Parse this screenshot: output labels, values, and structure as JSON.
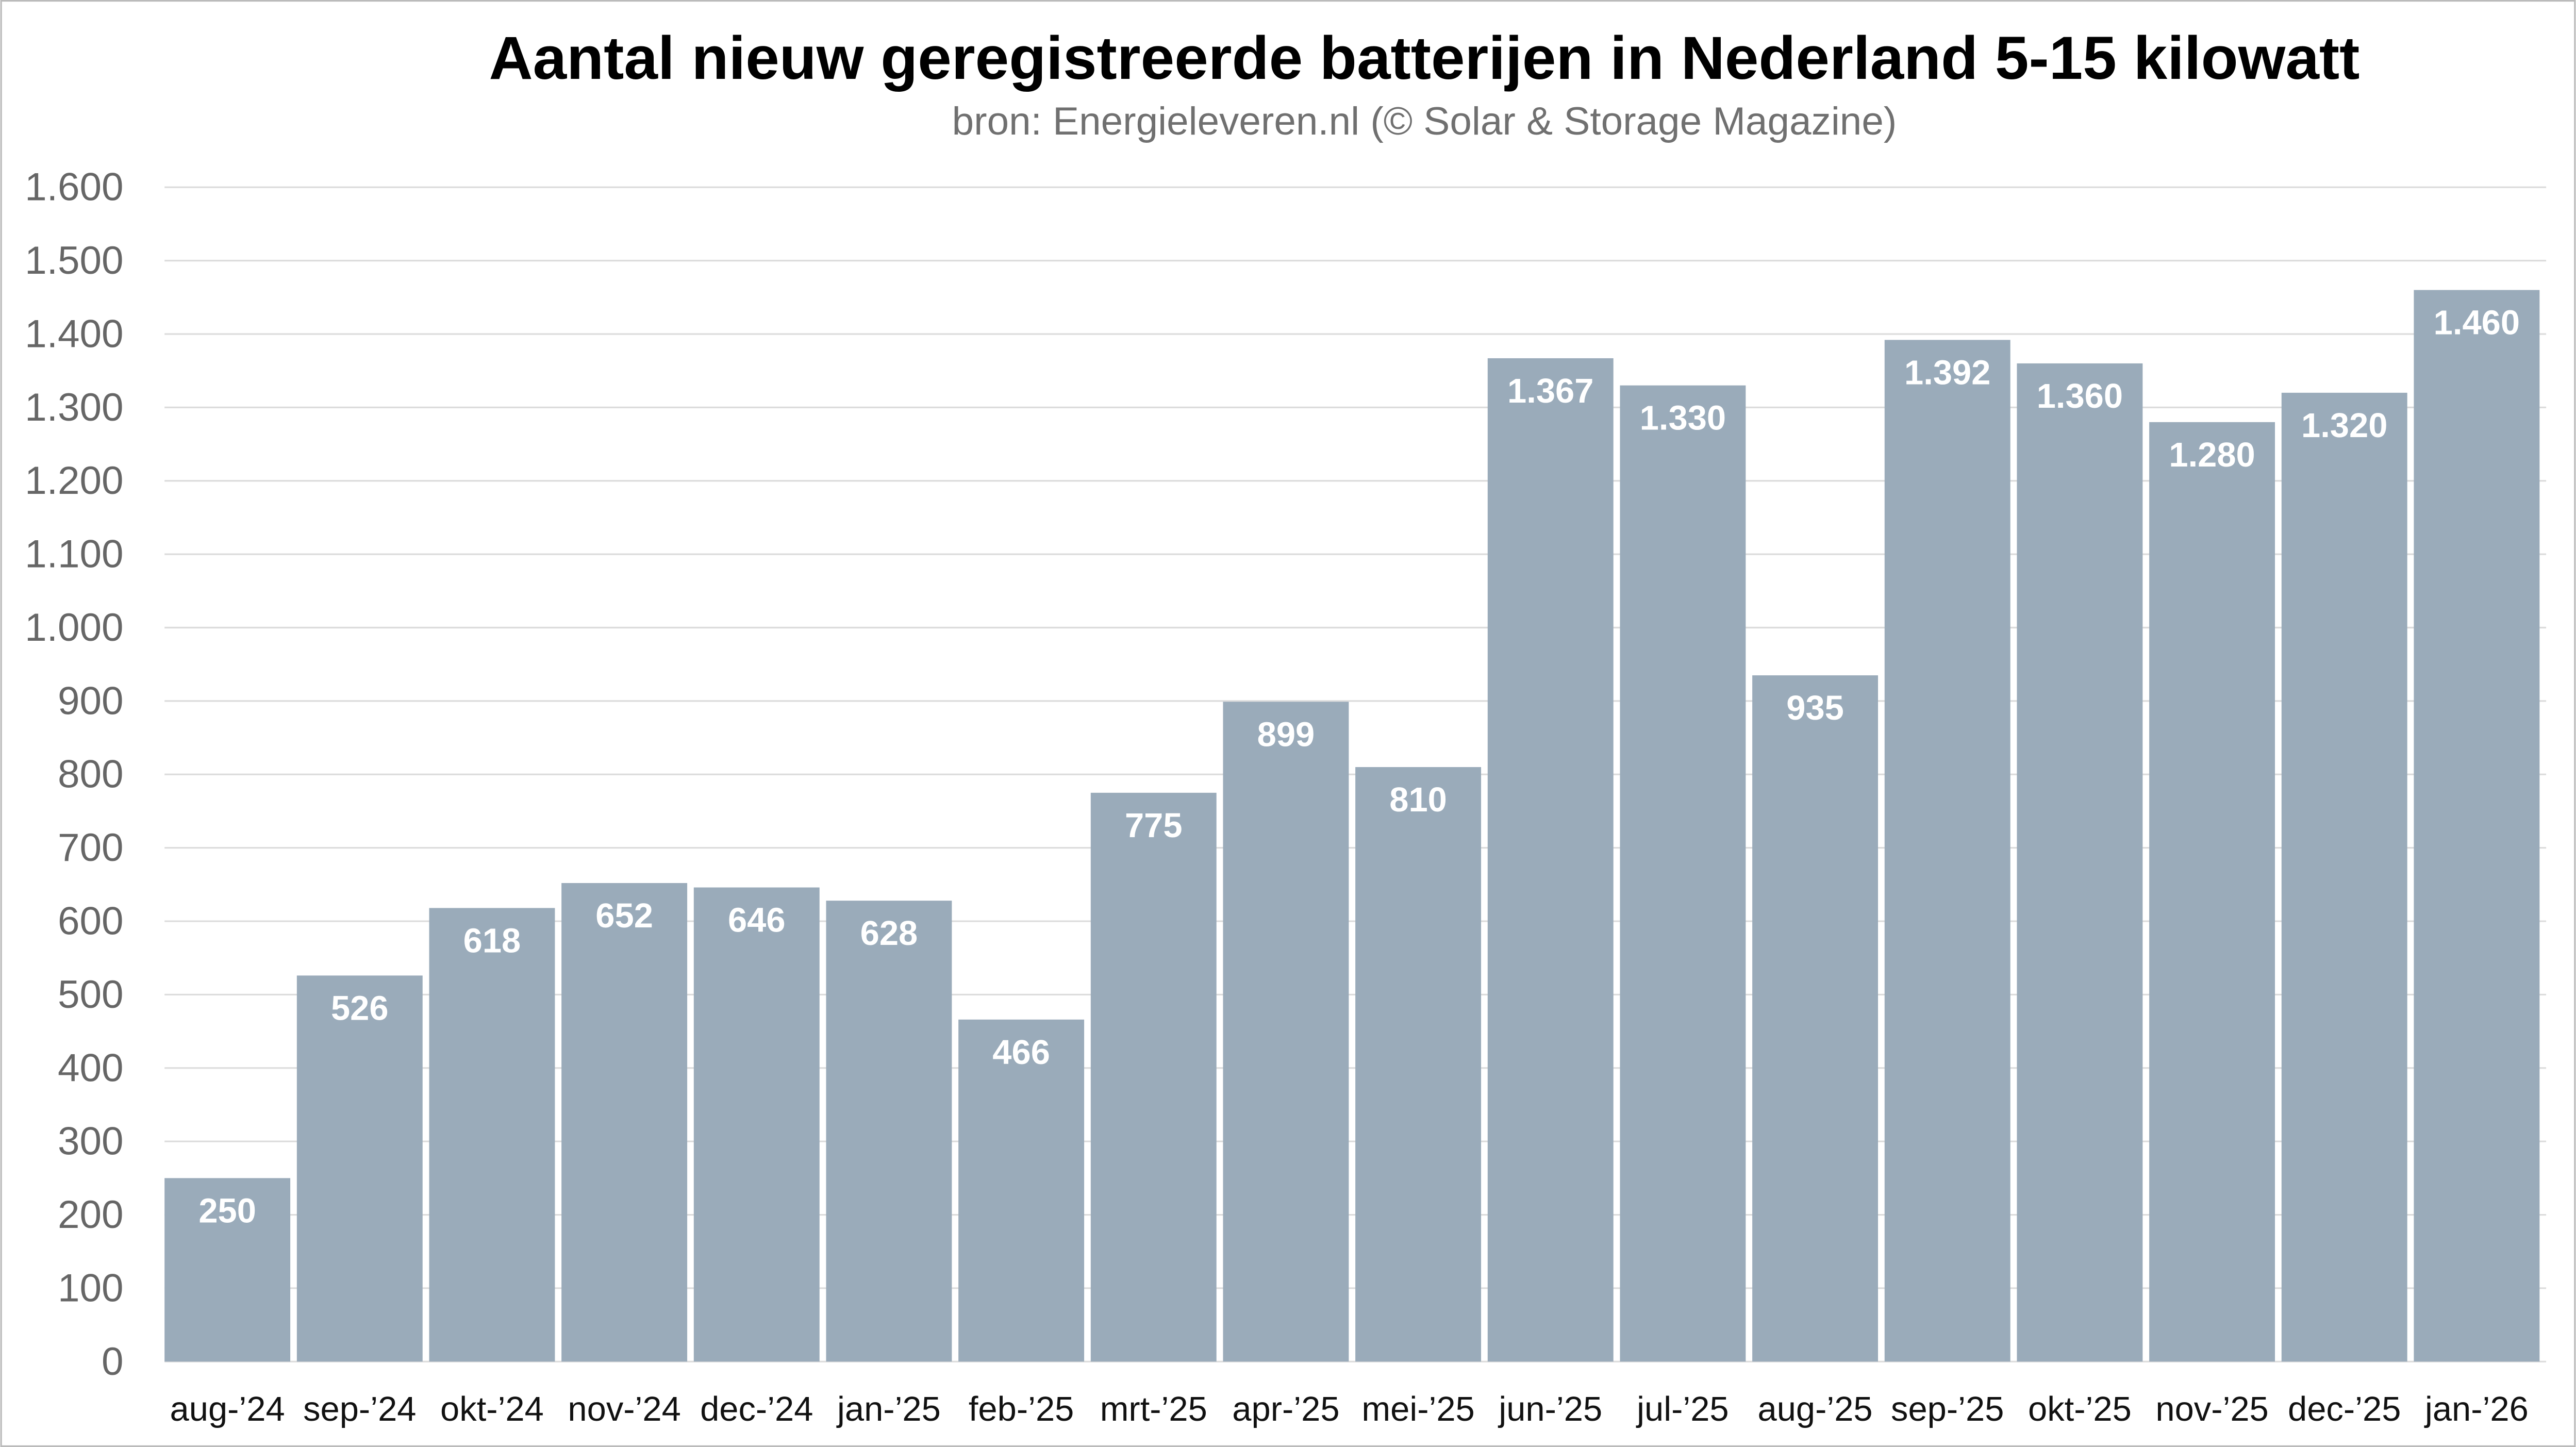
{
  "chart_data": {
    "type": "bar",
    "title": "Aantal nieuw geregistreerde batterijen in Nederland 5-15 kilowatt",
    "subtitle": "bron: Energieleveren.nl (© Solar & Storage Magazine)",
    "xlabel": "",
    "ylabel": "",
    "ylim": [
      0,
      1600
    ],
    "yticks": [
      0,
      100,
      200,
      300,
      400,
      500,
      600,
      700,
      800,
      900,
      1000,
      1100,
      1200,
      1300,
      1400,
      1500,
      1600
    ],
    "ytick_labels": [
      "0",
      "100",
      "200",
      "300",
      "400",
      "500",
      "600",
      "700",
      "800",
      "900",
      "1.000",
      "1.100",
      "1.200",
      "1.300",
      "1.400",
      "1.500",
      "1.600"
    ],
    "grid": true,
    "categories": [
      "aug-’24",
      "sep-’24",
      "okt-’24",
      "nov-’24",
      "dec-’24",
      "jan-’25",
      "feb-’25",
      "mrt-’25",
      "apr-’25",
      "mei-’25",
      "jun-’25",
      "jul-’25",
      "aug-’25",
      "sep-’25",
      "okt-’25",
      "nov-’25",
      "dec-’25",
      "jan-’26"
    ],
    "values": [
      250,
      526,
      618,
      652,
      646,
      628,
      466,
      775,
      899,
      810,
      1367,
      1330,
      935,
      1392,
      1360,
      1280,
      1320,
      1460
    ],
    "value_labels": [
      "250",
      "526",
      "618",
      "652",
      "646",
      "628",
      "466",
      "775",
      "899",
      "810",
      "1.367",
      "1.330",
      "935",
      "1.392",
      "1.360",
      "1.280",
      "1.320",
      "1.460"
    ],
    "bar_color": "#9aabba",
    "grid_color": "#dcdcdc"
  }
}
